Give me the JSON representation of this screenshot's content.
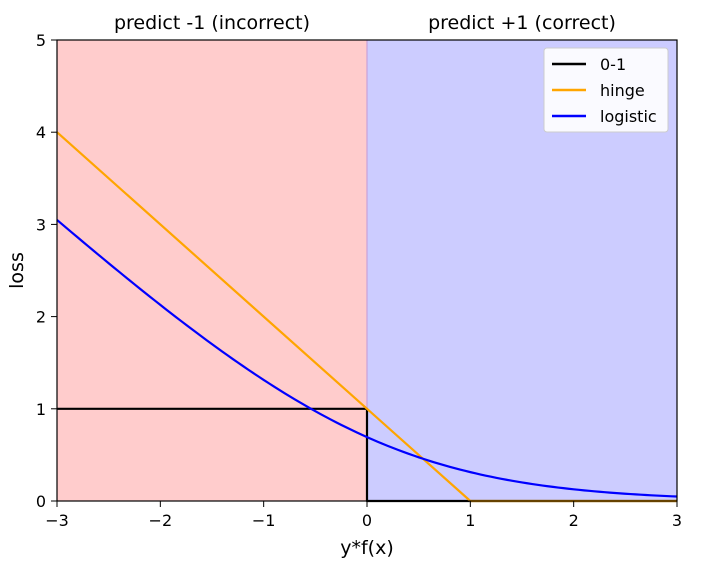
{
  "chart_data": {
    "type": "line",
    "xlabel": "y*f(x)",
    "ylabel": "loss",
    "xlim": [
      -3,
      3
    ],
    "ylim": [
      0,
      5
    ],
    "xticks": [
      -3,
      -2,
      -1,
      0,
      1,
      2,
      3
    ],
    "xtick_labels": [
      "−3",
      "−2",
      "−1",
      "0",
      "1",
      "2",
      "3"
    ],
    "yticks": [
      0,
      1,
      2,
      3,
      4,
      5
    ],
    "ytick_labels": [
      "0",
      "1",
      "2",
      "3",
      "4",
      "5"
    ],
    "grid": false,
    "legend_position": "top-right",
    "regions": [
      {
        "label": "predict -1 (incorrect)",
        "x_range": [
          -3,
          0
        ],
        "color": "#ffcccc"
      },
      {
        "label": "predict +1 (correct)",
        "x_range": [
          0,
          3
        ],
        "color": "#ccccff"
      }
    ],
    "series": [
      {
        "name": "0-1",
        "color": "#000000",
        "x": [
          -3,
          0,
          0,
          3
        ],
        "y": [
          1,
          1,
          0,
          0
        ]
      },
      {
        "name": "hinge",
        "color": "#ffa500",
        "x": [
          -3,
          1,
          3
        ],
        "y": [
          4,
          0,
          0
        ]
      },
      {
        "name": "logistic",
        "color": "#0000ff",
        "x": [
          -3,
          -2.5,
          -2,
          -1.5,
          -1,
          -0.5,
          0,
          0.5,
          1,
          1.5,
          2,
          2.5,
          3
        ],
        "y": [
          3.05,
          2.58,
          2.13,
          1.7,
          1.31,
          0.97,
          0.69,
          0.47,
          0.31,
          0.2,
          0.13,
          0.08,
          0.05
        ]
      }
    ]
  }
}
